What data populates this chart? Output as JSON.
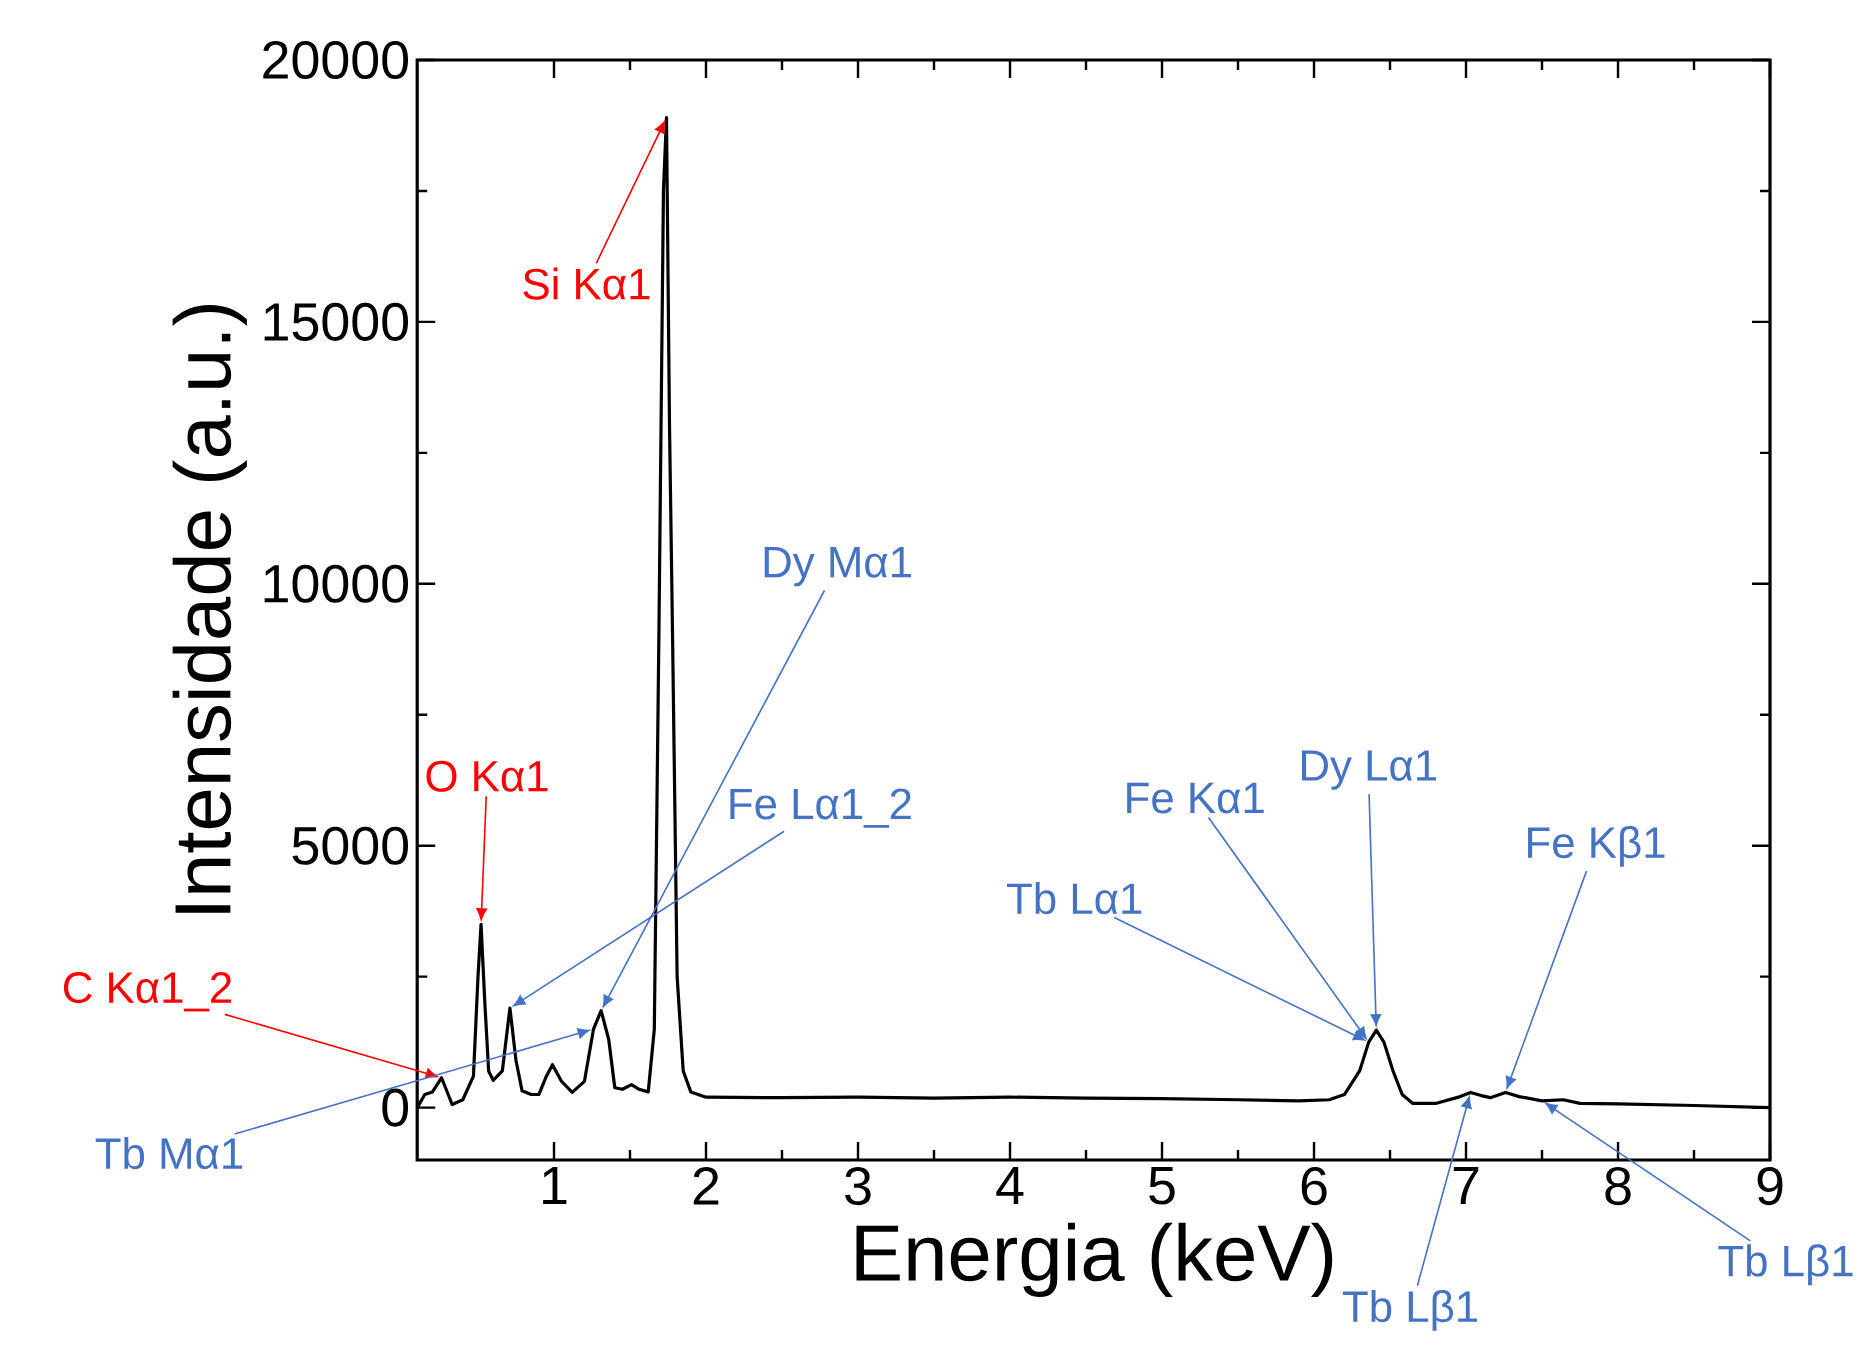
{
  "chart_data": {
    "type": "line",
    "xlabel": "Energia (keV)",
    "ylabel": "Intensidade (a.u.)",
    "xlim": [
      0.1,
      9
    ],
    "ylim": [
      -1000,
      20000
    ],
    "xticks": [
      1,
      2,
      3,
      4,
      5,
      6,
      7,
      8,
      9
    ],
    "yticks": [
      0,
      5000,
      10000,
      15000,
      20000
    ],
    "grid": false,
    "marker": "none",
    "line_style": "solid",
    "series": [
      {
        "color": "#000000",
        "x": [
          0.1,
          0.15,
          0.2,
          0.26,
          0.33,
          0.4,
          0.47,
          0.5,
          0.52,
          0.545,
          0.57,
          0.6,
          0.66,
          0.71,
          0.75,
          0.79,
          0.85,
          0.9,
          0.95,
          0.99,
          1.05,
          1.12,
          1.2,
          1.26,
          1.31,
          1.36,
          1.4,
          1.45,
          1.51,
          1.56,
          1.62,
          1.66,
          1.69,
          1.72,
          1.74,
          1.76,
          1.78,
          1.81,
          1.85,
          1.9,
          2.0,
          2.5,
          3.0,
          3.5,
          4.0,
          4.5,
          5.0,
          5.5,
          5.9,
          6.1,
          6.2,
          6.3,
          6.36,
          6.41,
          6.46,
          6.52,
          6.58,
          6.65,
          6.8,
          6.95,
          7.03,
          7.1,
          7.16,
          7.26,
          7.35,
          7.5,
          7.64,
          7.75,
          8.0,
          8.5,
          9.0
        ],
        "values": [
          0,
          250,
          300,
          570,
          60,
          150,
          600,
          2500,
          3500,
          2000,
          700,
          520,
          700,
          1900,
          900,
          320,
          250,
          250,
          600,
          820,
          500,
          290,
          500,
          1500,
          1850,
          1300,
          380,
          350,
          440,
          350,
          300,
          1500,
          9000,
          17500,
          18900,
          13000,
          9000,
          2500,
          700,
          300,
          200,
          190,
          200,
          180,
          200,
          180,
          170,
          150,
          130,
          150,
          250,
          700,
          1250,
          1480,
          1250,
          700,
          250,
          80,
          80,
          200,
          290,
          230,
          190,
          290,
          210,
          130,
          150,
          80,
          70,
          40,
          0
        ]
      }
    ],
    "annotations": [
      {
        "text": "Si Kα1",
        "x": 1.74,
        "y": 18900
      },
      {
        "text": "O Kα1",
        "x": 0.52,
        "y": 3500
      },
      {
        "text": "C Kα1_2",
        "x": 0.26,
        "y": 570
      },
      {
        "text": "Tb Mα1",
        "x": 1.26,
        "y": 1500
      },
      {
        "text": "Fe Lα1_2",
        "x": 0.71,
        "y": 1900
      },
      {
        "text": "Dy Mα1",
        "x": 1.31,
        "y": 1850
      },
      {
        "text": "Tb Lα1",
        "x": 6.36,
        "y": 1250
      },
      {
        "text": "Fe Kα1",
        "x": 6.36,
        "y": 1250
      },
      {
        "text": "Dy Lα1",
        "x": 6.41,
        "y": 1480
      },
      {
        "text": "Fe Kβ1",
        "x": 7.26,
        "y": 290
      },
      {
        "text": "Tb Lβ1",
        "x": 7.03,
        "y": 290
      },
      {
        "text": "Tb Lβ1",
        "x": 7.5,
        "y": 130
      }
    ]
  }
}
